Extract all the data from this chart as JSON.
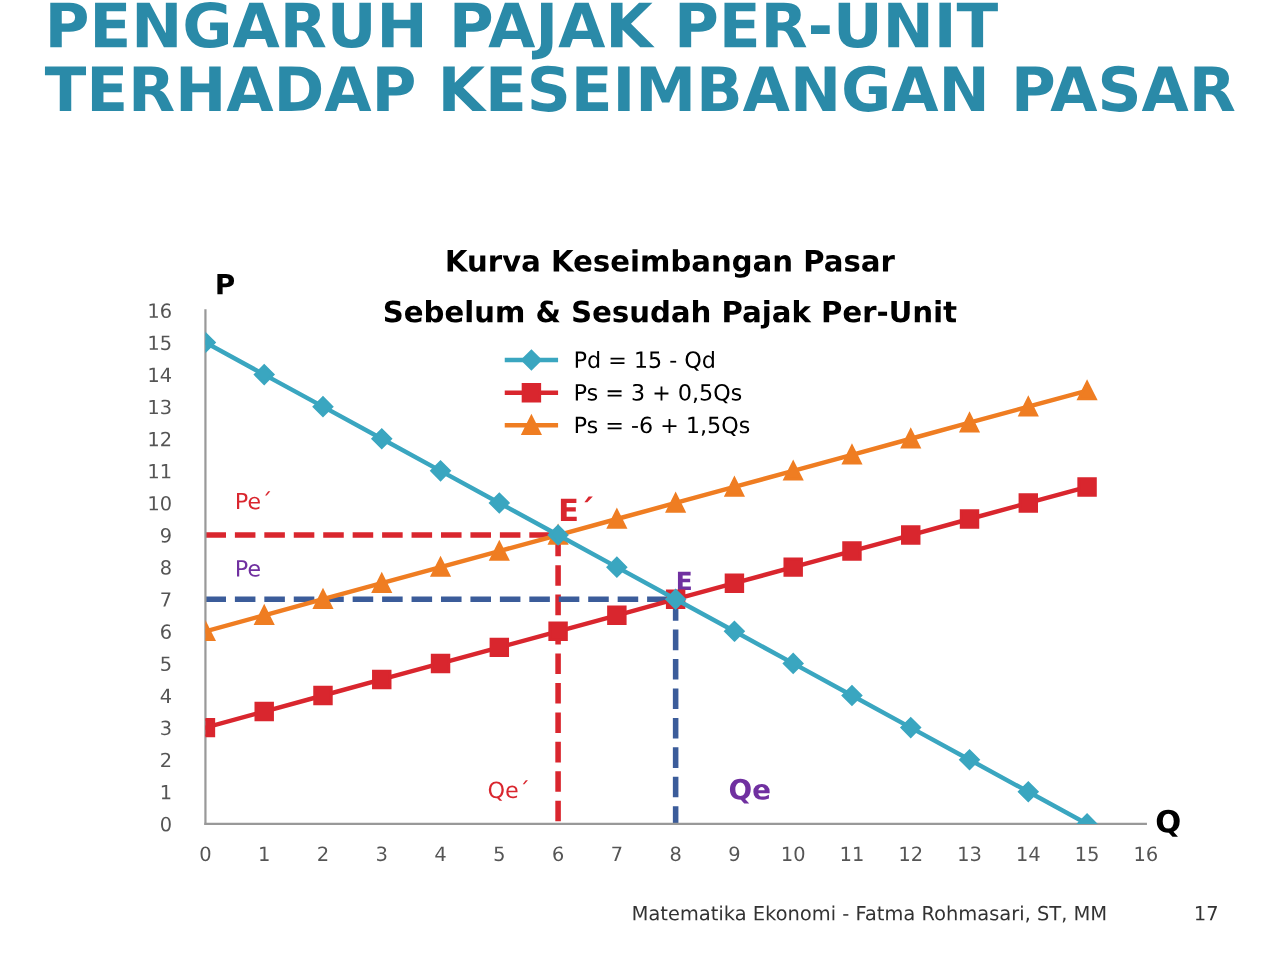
{
  "chart_data": {
    "type": "line",
    "title": "Kurva Keseimbangan Pasar",
    "subtitle": "Sebelum & Sesudah Pajak Per-Unit",
    "xlabel": "Q",
    "ylabel": "P",
    "x": [
      0,
      1,
      2,
      3,
      4,
      5,
      6,
      7,
      8,
      9,
      10,
      11,
      12,
      13,
      14,
      15
    ],
    "series": [
      {
        "name": "Pd = 15 - Qd",
        "color": "#3aa6c0",
        "marker": "diamond",
        "values": [
          15,
          14,
          13,
          12,
          11,
          10,
          9,
          8,
          7,
          6,
          5,
          4,
          3,
          2,
          1,
          0
        ]
      },
      {
        "name": "Ps = 3 + 0,5Qs",
        "color": "#d9262e",
        "marker": "square",
        "values": [
          3,
          3.5,
          4,
          4.5,
          5,
          5.5,
          6,
          6.5,
          7,
          7.5,
          8,
          8.5,
          9,
          9.5,
          10,
          10.5
        ]
      },
      {
        "name": "Ps = -6 + 1,5Qs",
        "color": "#ef7d22",
        "marker": "triangle",
        "values": [
          6,
          6.5,
          7,
          7.5,
          8,
          8.5,
          9,
          9.5,
          10,
          10.5,
          11,
          11.5,
          12,
          12.5,
          13,
          13.5
        ]
      },
      {
        "color": "#d9262e",
        "marker": "none",
        "line_style": "dashed",
        "x": [
          0,
          6,
          6
        ],
        "values": [
          9,
          9,
          0
        ]
      },
      {
        "color": "#3b5c9a",
        "marker": "none",
        "line_style": "dashed",
        "x": [
          0,
          8,
          8
        ],
        "values": [
          7,
          7,
          0
        ]
      }
    ],
    "xlim": [
      0,
      16
    ],
    "ylim": [
      0,
      16
    ],
    "xticks": [
      0,
      1,
      2,
      3,
      4,
      5,
      6,
      7,
      8,
      9,
      10,
      11,
      12,
      13,
      14,
      15,
      16
    ],
    "yticks": [
      0,
      1,
      2,
      3,
      4,
      5,
      6,
      7,
      8,
      9,
      10,
      11,
      12,
      13,
      14,
      15,
      16
    ],
    "grid": false,
    "legend": "top",
    "annotations": [
      "PENGARUH PAJAK PER-UNIT\nTERHADAP KESEIMBANGAN PASAR",
      {
        "text": "Pe´",
        "x": 0,
        "y": 9
      },
      {
        "text": "Pe",
        "x": 0,
        "y": 7
      },
      {
        "text": "E´",
        "x": 6,
        "y": 9
      },
      {
        "text": "E",
        "x": 8,
        "y": 7
      },
      {
        "text": "Qe´",
        "x": 6,
        "y": 0
      },
      {
        "text": "Qe",
        "x": 8,
        "y": 0
      },
      "Matematika Ekonomi - Fatma Rohmasari, ST, MM",
      "17"
    ]
  }
}
